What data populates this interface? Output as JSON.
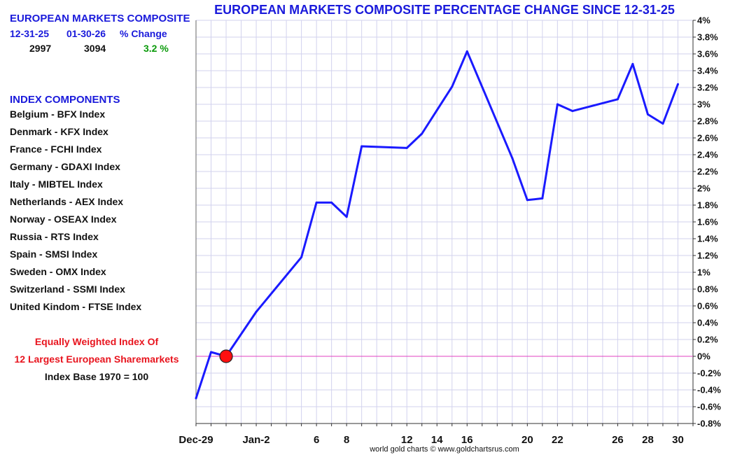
{
  "panel": {
    "title": "EUROPEAN MARKETS COMPOSITE",
    "stats": {
      "start_date": "12-31-25",
      "end_date": "01-30-26",
      "change_label": "% Change",
      "start_value": "2997",
      "end_value": "3094",
      "change_value": "3.2 %"
    },
    "components_title": "INDEX COMPONENTS",
    "components": [
      "Belgium - BFX Index",
      "Denmark - KFX Index",
      "France - FCHI Index",
      "Germany - GDAXI Index",
      "Italy - MIBTEL Index",
      "Netherlands - AEX Index",
      "Norway - OSEAX Index",
      "Russia - RTS Index",
      "Spain - SMSI Index",
      "Sweden - OMX Index",
      "Switzerland - SSMI Index",
      "United Kindom - FTSE Index"
    ],
    "note_line1": "Equally Weighted Index Of",
    "note_line2": "12 Largest European Sharemarkets",
    "note_line3": "Index Base 1970 = 100"
  },
  "credit": "world gold charts © www.goldchartsrus.com",
  "colors": {
    "line": "#1a1aff",
    "baseline": "#e040c0",
    "grid": "#d2d2ee",
    "marker": "#ff1010",
    "title": "#1a1adb",
    "positive": "#0a9a0a",
    "note": "#e8141e"
  },
  "chart_data": {
    "type": "line",
    "title": "EUROPEAN MARKETS COMPOSITE PERCENTAGE CHANGE SINCE 12-31-25",
    "xlabel": "",
    "ylabel": "",
    "x_range": [
      "2025-12-29",
      "2026-01-31"
    ],
    "ylim": [
      -0.8,
      4
    ],
    "y_ticks": [
      -0.8,
      -0.6,
      -0.4,
      -0.2,
      0,
      0.2,
      0.4,
      0.6,
      0.8,
      1,
      1.2,
      1.4,
      1.6,
      1.8,
      2,
      2.2,
      2.4,
      2.6,
      2.8,
      3,
      3.2,
      3.4,
      3.6,
      3.8,
      4
    ],
    "y_tick_labels": [
      "-0.8%",
      "-0.6%",
      "-0.4%",
      "-0.2%",
      "0%",
      "0.2%",
      "0.4%",
      "0.6%",
      "0.8%",
      "1%",
      "1.2%",
      "1.4%",
      "1.6%",
      "1.8%",
      "2%",
      "2.2%",
      "2.4%",
      "2.6%",
      "2.8%",
      "3%",
      "3.2%",
      "3.4%",
      "3.6%",
      "3.8%",
      "4%"
    ],
    "y_axis_side": "right",
    "x_tick_labels": [
      {
        "x": "2025-12-29",
        "label": "Dec-29"
      },
      {
        "x": "2026-01-02",
        "label": "Jan-2"
      },
      {
        "x": "2026-01-06",
        "label": "6"
      },
      {
        "x": "2026-01-08",
        "label": "8"
      },
      {
        "x": "2026-01-12",
        "label": "12"
      },
      {
        "x": "2026-01-14",
        "label": "14"
      },
      {
        "x": "2026-01-16",
        "label": "16"
      },
      {
        "x": "2026-01-20",
        "label": "20"
      },
      {
        "x": "2026-01-22",
        "label": "22"
      },
      {
        "x": "2026-01-26",
        "label": "26"
      },
      {
        "x": "2026-01-28",
        "label": "28"
      },
      {
        "x": "2026-01-30",
        "label": "30"
      }
    ],
    "grid": true,
    "baseline": 0,
    "series": [
      {
        "x": [
          "2025-12-29",
          "2025-12-30",
          "2025-12-31",
          "2026-01-02",
          "2026-01-05",
          "2026-01-06",
          "2026-01-07",
          "2026-01-08",
          "2026-01-09",
          "2026-01-12",
          "2026-01-13",
          "2026-01-14",
          "2026-01-15",
          "2026-01-16",
          "2026-01-19",
          "2026-01-20",
          "2026-01-21",
          "2026-01-22",
          "2026-01-23",
          "2026-01-26",
          "2026-01-27",
          "2026-01-28",
          "2026-01-29",
          "2026-01-30"
        ],
        "values": [
          -0.5,
          0.05,
          0.0,
          0.53,
          1.18,
          1.83,
          1.83,
          1.66,
          2.5,
          2.48,
          2.65,
          2.93,
          3.21,
          3.63,
          2.36,
          1.86,
          1.88,
          3.0,
          2.92,
          3.06,
          3.48,
          2.88,
          2.77,
          3.24
        ]
      }
    ],
    "marker": {
      "x": "2025-12-31",
      "value": 0
    }
  }
}
